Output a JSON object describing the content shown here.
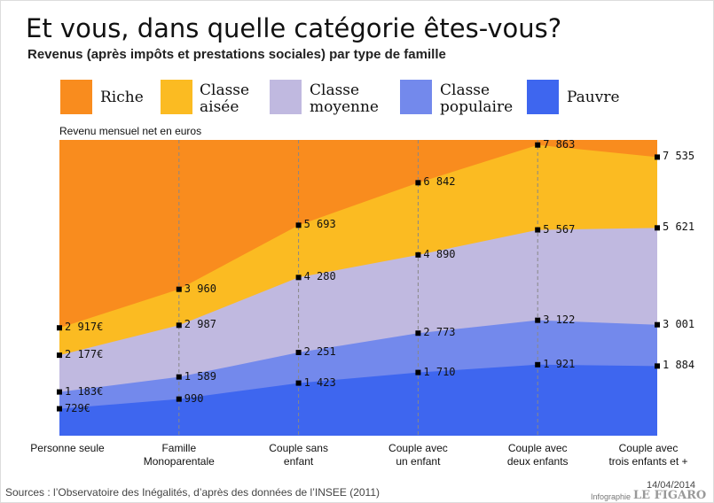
{
  "chart_data": {
    "type": "area",
    "title": "Et vous, dans quelle catégorie êtes-vous?",
    "subtitle": "Revenus (après impôts et prestations sociales) par type de famille",
    "ylabel": "Revenu mensuel net en euros",
    "categories": [
      "Personne seule",
      "Famille\nMonoparentale",
      "Couple sans\nenfant",
      "Couple avec\nun enfant",
      "Couple avec\ndeux enfants",
      "Couple avec\ntrois enfants et +"
    ],
    "ylim": [
      0,
      8000
    ],
    "series": [
      {
        "name": "Riche",
        "color": "#f98c1e"
      },
      {
        "name": "Classe\naisée",
        "color": "#fbbb22",
        "values": [
          2917,
          3960,
          5693,
          6842,
          7863,
          7535
        ],
        "value_labels": [
          "2 917€",
          "3 960",
          "5 693",
          "6 842",
          "7 863",
          "7 535"
        ]
      },
      {
        "name": "Classe\nmoyenne",
        "color": "#c0b9e0",
        "values": [
          2177,
          2987,
          4280,
          4890,
          5567,
          5621
        ],
        "value_labels": [
          "2 177€",
          "2 987",
          "4 280",
          "4 890",
          "5 567",
          "5 621"
        ]
      },
      {
        "name": "Classe\npopulaire",
        "color": "#7389ec",
        "values": [
          1183,
          1589,
          2251,
          2773,
          3122,
          3001
        ],
        "value_labels": [
          "1 183€",
          "1 589",
          "2 251",
          "2 773",
          "3 122",
          "3 001"
        ]
      },
      {
        "name": "Pauvre",
        "color": "#3e66ef",
        "values": [
          729,
          990,
          1423,
          1710,
          1921,
          1884
        ],
        "value_labels": [
          "729€",
          "990",
          "1 423",
          "1 710",
          "1 921",
          "1 884"
        ]
      }
    ]
  },
  "footer": {
    "source": "Sources : l’Observatoire des Inégalités, d’après des données de l’INSEE (2011)",
    "date": "14/04/2014",
    "credit": "Infographie",
    "brand": "LE FIGARO"
  }
}
